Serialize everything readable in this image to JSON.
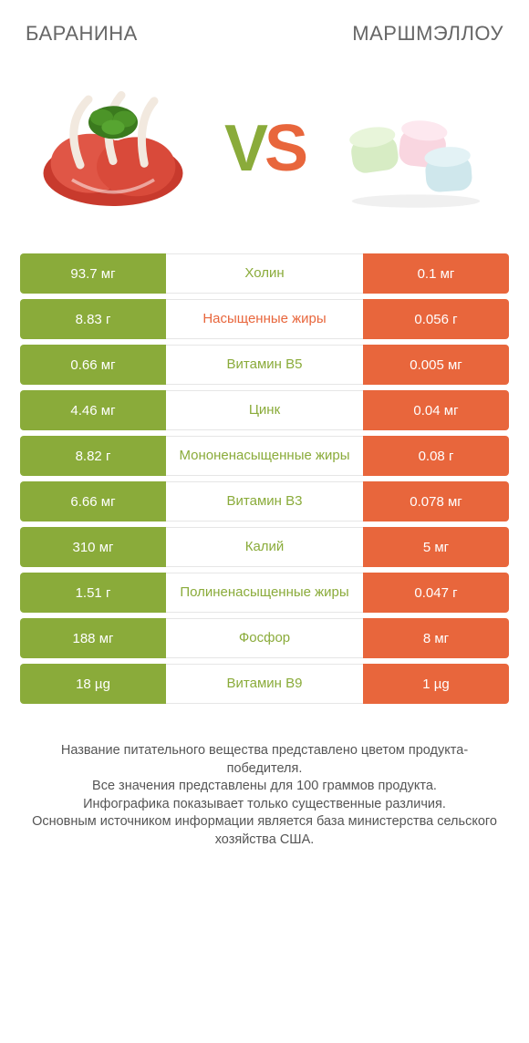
{
  "colors": {
    "left_bg": "#8aab3a",
    "right_bg": "#e8663c",
    "mid_bg": "#ffffff",
    "mid_border": "#e6e6e6",
    "text_on_color": "#ffffff"
  },
  "header": {
    "left_title": "БАРАНИНА",
    "right_title": "МАРШМЭЛЛОУ"
  },
  "vs": {
    "v": "V",
    "s": "S"
  },
  "rows": [
    {
      "left": "93.7 мг",
      "mid": "Холин",
      "mid_color": "#8aab3a",
      "right": "0.1 мг"
    },
    {
      "left": "8.83 г",
      "mid": "Насыщенные жиры",
      "mid_color": "#e8663c",
      "right": "0.056 г"
    },
    {
      "left": "0.66 мг",
      "mid": "Витамин B5",
      "mid_color": "#8aab3a",
      "right": "0.005 мг"
    },
    {
      "left": "4.46 мг",
      "mid": "Цинк",
      "mid_color": "#8aab3a",
      "right": "0.04 мг"
    },
    {
      "left": "8.82 г",
      "mid": "Мононенасыщенные жиры",
      "mid_color": "#8aab3a",
      "right": "0.08 г"
    },
    {
      "left": "6.66 мг",
      "mid": "Витамин B3",
      "mid_color": "#8aab3a",
      "right": "0.078 мг"
    },
    {
      "left": "310 мг",
      "mid": "Калий",
      "mid_color": "#8aab3a",
      "right": "5 мг"
    },
    {
      "left": "1.51 г",
      "mid": "Полиненасыщенные жиры",
      "mid_color": "#8aab3a",
      "right": "0.047 г"
    },
    {
      "left": "188 мг",
      "mid": "Фосфор",
      "mid_color": "#8aab3a",
      "right": "8 мг"
    },
    {
      "left": "18 µg",
      "mid": "Витамин B9",
      "mid_color": "#8aab3a",
      "right": "1 µg"
    }
  ],
  "footer": "Название питательного вещества представлено цветом продукта-победителя.\nВсе значения представлены для 100 граммов продукта.\nИнфографика показывает только существенные различия.\nОсновным источником информации является база министерства сельского хозяйства США."
}
